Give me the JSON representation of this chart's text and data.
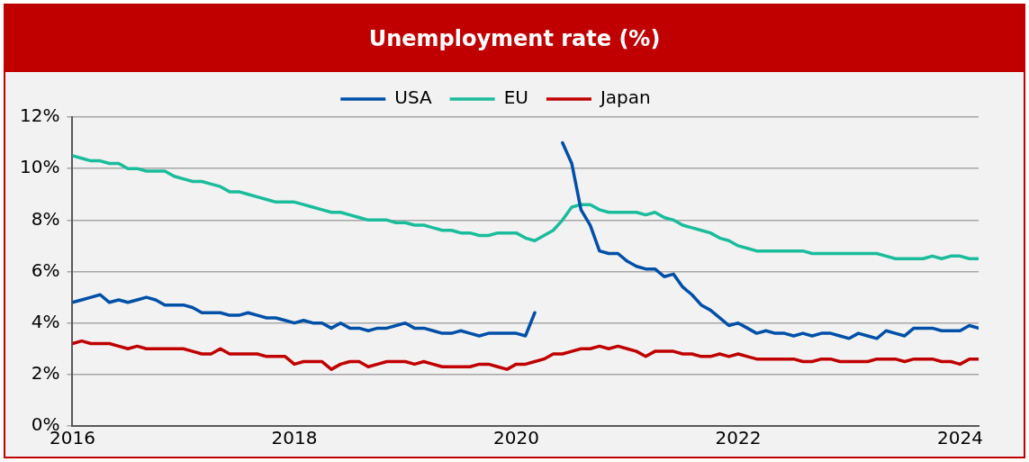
{
  "chart_data": {
    "type": "line",
    "title": "Unemployment rate (%)",
    "x": [
      "2016-01",
      "2016-02",
      "2016-03",
      "2016-04",
      "2016-05",
      "2016-06",
      "2016-07",
      "2016-08",
      "2016-09",
      "2016-10",
      "2016-11",
      "2016-12",
      "2017-01",
      "2017-02",
      "2017-03",
      "2017-04",
      "2017-05",
      "2017-06",
      "2017-07",
      "2017-08",
      "2017-09",
      "2017-10",
      "2017-11",
      "2017-12",
      "2018-01",
      "2018-02",
      "2018-03",
      "2018-04",
      "2018-05",
      "2018-06",
      "2018-07",
      "2018-08",
      "2018-09",
      "2018-10",
      "2018-11",
      "2018-12",
      "2019-01",
      "2019-02",
      "2019-03",
      "2019-04",
      "2019-05",
      "2019-06",
      "2019-07",
      "2019-08",
      "2019-09",
      "2019-10",
      "2019-11",
      "2019-12",
      "2020-01",
      "2020-02",
      "2020-03",
      "2020-04",
      "2020-05",
      "2020-06",
      "2020-07",
      "2020-08",
      "2020-09",
      "2020-10",
      "2020-11",
      "2020-12",
      "2021-01",
      "2021-02",
      "2021-03",
      "2021-04",
      "2021-05",
      "2021-06",
      "2021-07",
      "2021-08",
      "2021-09",
      "2021-10",
      "2021-11",
      "2021-12",
      "2022-01",
      "2022-02",
      "2022-03",
      "2022-04",
      "2022-05",
      "2022-06",
      "2022-07",
      "2022-08",
      "2022-09",
      "2022-10",
      "2022-11",
      "2022-12",
      "2023-01",
      "2023-02",
      "2023-03",
      "2023-04",
      "2023-05",
      "2023-06",
      "2023-07",
      "2023-08",
      "2023-09",
      "2023-10",
      "2023-11",
      "2023-12",
      "2024-01",
      "2024-02",
      "2024-03"
    ],
    "series": [
      {
        "name": "USA",
        "color": "#0050a8",
        "values": [
          4.8,
          4.9,
          5.0,
          5.1,
          4.8,
          4.9,
          4.8,
          4.9,
          5.0,
          4.9,
          4.7,
          4.7,
          4.7,
          4.6,
          4.4,
          4.4,
          4.4,
          4.3,
          4.3,
          4.4,
          4.3,
          4.2,
          4.2,
          4.1,
          4.0,
          4.1,
          4.0,
          4.0,
          3.8,
          4.0,
          3.8,
          3.8,
          3.7,
          3.8,
          3.8,
          3.9,
          4.0,
          3.8,
          3.8,
          3.7,
          3.6,
          3.6,
          3.7,
          3.6,
          3.5,
          3.6,
          3.6,
          3.6,
          3.6,
          3.5,
          4.4,
          null,
          null,
          11.0,
          10.2,
          8.4,
          7.8,
          6.8,
          6.7,
          6.7,
          6.4,
          6.2,
          6.1,
          6.1,
          5.8,
          5.9,
          5.4,
          5.1,
          4.7,
          4.5,
          4.2,
          3.9,
          4.0,
          3.8,
          3.6,
          3.7,
          3.6,
          3.6,
          3.5,
          3.6,
          3.5,
          3.6,
          3.6,
          3.5,
          3.4,
          3.6,
          3.5,
          3.4,
          3.7,
          3.6,
          3.5,
          3.8,
          3.8,
          3.8,
          3.7,
          3.7,
          3.7,
          3.9,
          3.8
        ]
      },
      {
        "name": "EU",
        "color": "#1bbc9b",
        "values": [
          10.5,
          10.4,
          10.3,
          10.3,
          10.2,
          10.2,
          10.0,
          10.0,
          9.9,
          9.9,
          9.9,
          9.7,
          9.6,
          9.5,
          9.5,
          9.4,
          9.3,
          9.1,
          9.1,
          9.0,
          8.9,
          8.8,
          8.7,
          8.7,
          8.7,
          8.6,
          8.5,
          8.4,
          8.3,
          8.3,
          8.2,
          8.1,
          8.0,
          8.0,
          8.0,
          7.9,
          7.9,
          7.8,
          7.8,
          7.7,
          7.6,
          7.6,
          7.5,
          7.5,
          7.4,
          7.4,
          7.5,
          7.5,
          7.5,
          7.3,
          7.2,
          7.4,
          7.6,
          8.0,
          8.5,
          8.6,
          8.6,
          8.4,
          8.3,
          8.3,
          8.3,
          8.3,
          8.2,
          8.3,
          8.1,
          8.0,
          7.8,
          7.7,
          7.6,
          7.5,
          7.3,
          7.2,
          7.0,
          6.9,
          6.8,
          6.8,
          6.8,
          6.8,
          6.8,
          6.8,
          6.7,
          6.7,
          6.7,
          6.7,
          6.7,
          6.7,
          6.7,
          6.7,
          6.6,
          6.5,
          6.5,
          6.5,
          6.5,
          6.6,
          6.5,
          6.6,
          6.6,
          6.5,
          6.5
        ]
      },
      {
        "name": "Japan",
        "color": "#c00000",
        "values": [
          3.2,
          3.3,
          3.2,
          3.2,
          3.2,
          3.1,
          3.0,
          3.1,
          3.0,
          3.0,
          3.0,
          3.0,
          3.0,
          2.9,
          2.8,
          2.8,
          3.0,
          2.8,
          2.8,
          2.8,
          2.8,
          2.7,
          2.7,
          2.7,
          2.4,
          2.5,
          2.5,
          2.5,
          2.2,
          2.4,
          2.5,
          2.5,
          2.3,
          2.4,
          2.5,
          2.5,
          2.5,
          2.4,
          2.5,
          2.4,
          2.3,
          2.3,
          2.3,
          2.3,
          2.4,
          2.4,
          2.3,
          2.2,
          2.4,
          2.4,
          2.5,
          2.6,
          2.8,
          2.8,
          2.9,
          3.0,
          3.0,
          3.1,
          3.0,
          3.1,
          3.0,
          2.9,
          2.7,
          2.9,
          2.9,
          2.9,
          2.8,
          2.8,
          2.7,
          2.7,
          2.8,
          2.7,
          2.8,
          2.7,
          2.6,
          2.6,
          2.6,
          2.6,
          2.6,
          2.5,
          2.5,
          2.6,
          2.6,
          2.5,
          2.5,
          2.5,
          2.5,
          2.6,
          2.6,
          2.6,
          2.5,
          2.6,
          2.6,
          2.6,
          2.5,
          2.5,
          2.4,
          2.6,
          2.6
        ]
      }
    ],
    "xlim": [
      "2016-01",
      "2024-03"
    ],
    "xticks": [
      "2016",
      "2018",
      "2020",
      "2022",
      "2024"
    ],
    "ylim": [
      0,
      12
    ],
    "yticks": [
      {
        "value": 0,
        "label": "0%"
      },
      {
        "value": 2,
        "label": "2%"
      },
      {
        "value": 4,
        "label": "4%"
      },
      {
        "value": 6,
        "label": "6%"
      },
      {
        "value": 8,
        "label": "8%"
      },
      {
        "value": 10,
        "label": "10%"
      },
      {
        "value": 12,
        "label": "12%"
      }
    ],
    "grid": "y",
    "legend": "top",
    "marker": "none",
    "line_style": "solid"
  }
}
